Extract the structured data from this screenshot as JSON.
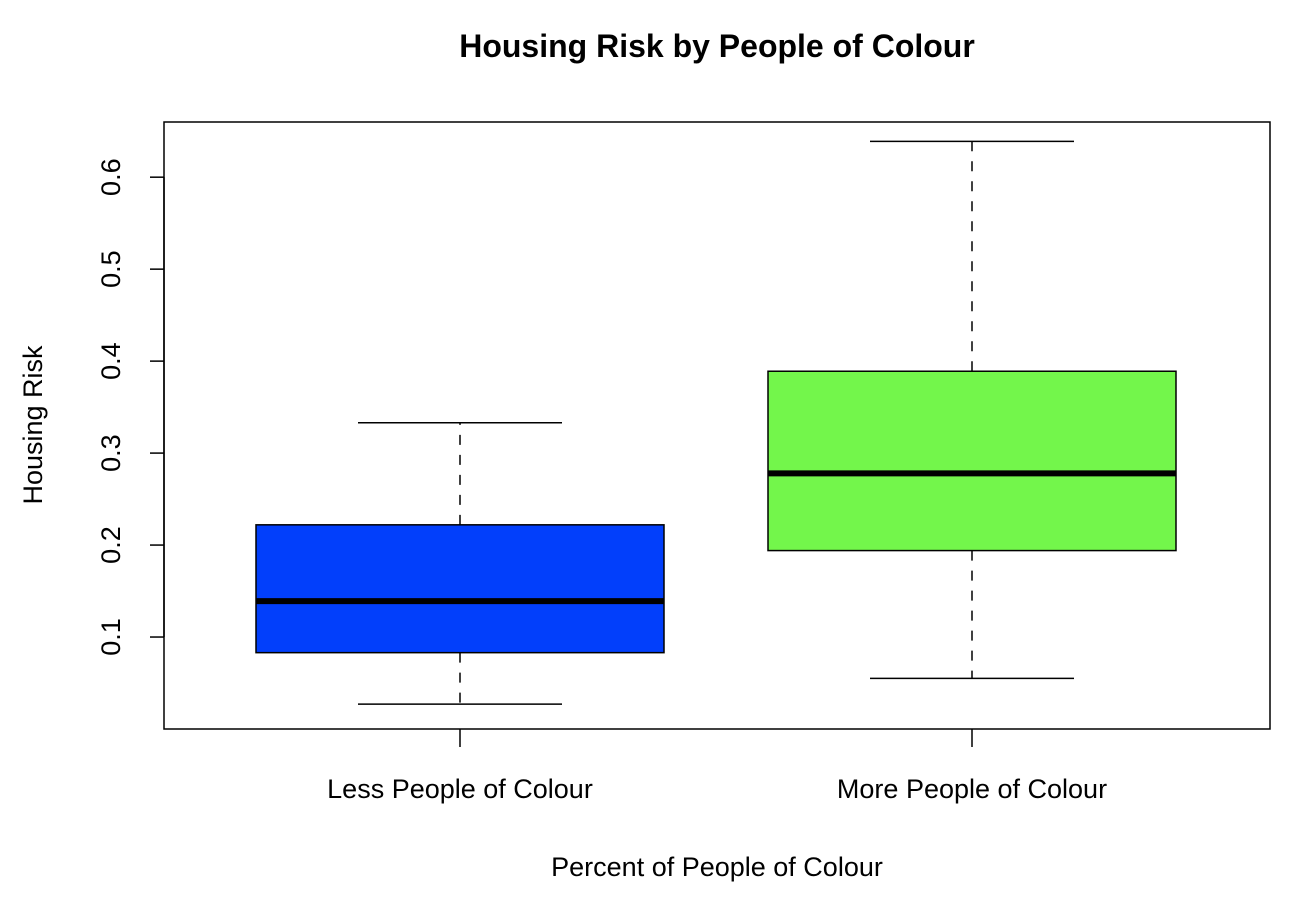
{
  "chart_data": {
    "type": "boxplot",
    "title": "Housing Risk by People of Colour",
    "xlabel": "Percent of People of Colour",
    "ylabel": "Housing Risk",
    "ylim": [
      0.0,
      0.66
    ],
    "yticks": [
      0.1,
      0.2,
      0.3,
      0.4,
      0.5,
      0.6
    ],
    "ytick_labels": [
      "0.1",
      "0.2",
      "0.3",
      "0.4",
      "0.5",
      "0.6"
    ],
    "grid": false,
    "legend": "none",
    "categories": [
      "Less People of Colour",
      "More People of Colour"
    ],
    "boxes": [
      {
        "category": "Less People of Colour",
        "min": 0.027,
        "q1": 0.083,
        "median": 0.139,
        "q3": 0.222,
        "max": 0.333,
        "color": "#023FFB"
      },
      {
        "category": "More People of Colour",
        "min": 0.055,
        "q1": 0.194,
        "median": 0.278,
        "q3": 0.389,
        "max": 0.639,
        "color": "#73F64B"
      }
    ]
  }
}
